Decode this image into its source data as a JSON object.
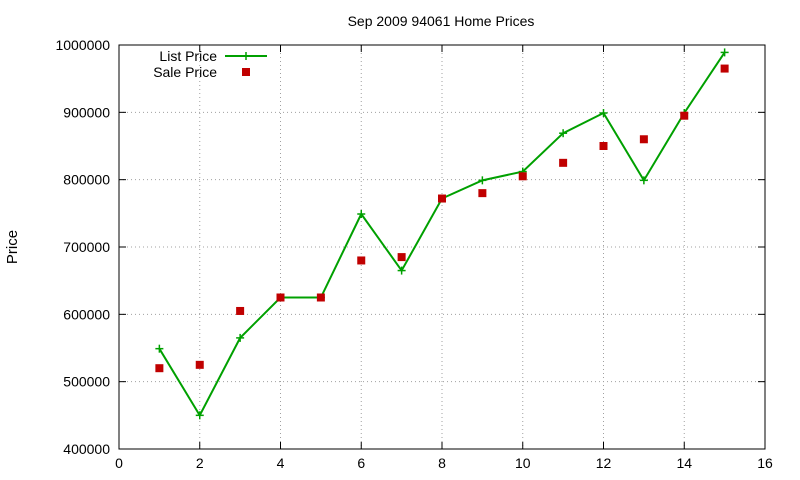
{
  "chart_data": {
    "type": "line",
    "title": "Sep 2009 94061 Home Prices",
    "xlabel": "",
    "ylabel": "Price",
    "xlim": [
      0,
      16
    ],
    "ylim": [
      400000,
      1000000
    ],
    "xticks": [
      "0",
      "2",
      "4",
      "6",
      "8",
      "10",
      "12",
      "14",
      "16"
    ],
    "yticks": [
      "400000",
      "500000",
      "600000",
      "700000",
      "800000",
      "900000",
      "1000000"
    ],
    "grid": true,
    "legend_position": "top-left",
    "series": [
      {
        "name": "List Price",
        "style": "line-with-plus-markers",
        "color": "#00a000",
        "x": [
          1,
          2,
          3,
          4,
          5,
          6,
          7,
          8,
          9,
          10,
          11,
          12,
          13,
          14,
          15
        ],
        "y": [
          549000,
          450000,
          565000,
          625000,
          625000,
          749000,
          665000,
          772000,
          799000,
          812000,
          869000,
          899000,
          799000,
          899000,
          989000
        ]
      },
      {
        "name": "Sale Price",
        "style": "square-markers",
        "color": "#c00000",
        "x": [
          1,
          2,
          3,
          4,
          5,
          6,
          7,
          8,
          9,
          10,
          11,
          12,
          13,
          14,
          15
        ],
        "y": [
          520000,
          525000,
          605000,
          625000,
          625000,
          680000,
          685000,
          772000,
          780000,
          805000,
          825000,
          850000,
          860000,
          895000,
          965000
        ]
      }
    ]
  }
}
